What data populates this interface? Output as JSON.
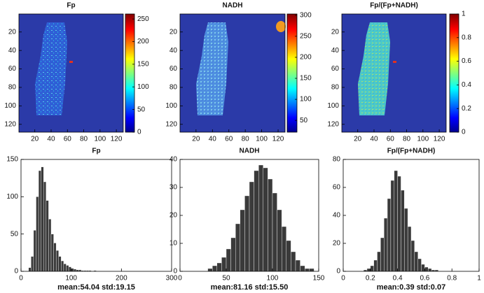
{
  "chart_data": [
    {
      "type": "heatmap",
      "title": "Fp",
      "xlim": [
        0.5,
        128.5
      ],
      "ylim": [
        0.5,
        128.5
      ],
      "y_reversed": true,
      "xticks": [
        20,
        40,
        60,
        80,
        100,
        120
      ],
      "yticks": [
        20,
        40,
        60,
        80,
        100,
        120
      ],
      "colorbar": {
        "lim": [
          0,
          261
        ],
        "ticks": [
          0,
          50,
          100,
          150,
          200,
          250
        ]
      }
    },
    {
      "type": "heatmap",
      "title": "NADH",
      "xlim": [
        0.5,
        128.5
      ],
      "ylim": [
        0.5,
        128.5
      ],
      "y_reversed": true,
      "xticks": [
        20,
        40,
        60,
        80,
        100,
        120
      ],
      "yticks": [
        20,
        40,
        60,
        80,
        100,
        120
      ],
      "colorbar": {
        "lim": [
          22,
          303
        ],
        "ticks": [
          50,
          100,
          150,
          200,
          250,
          300
        ]
      }
    },
    {
      "type": "heatmap",
      "title": "Fp/(Fp+NADH)",
      "xlim": [
        0.5,
        128.5
      ],
      "ylim": [
        0.5,
        128.5
      ],
      "y_reversed": true,
      "xticks": [
        20,
        40,
        60,
        80,
        100,
        120
      ],
      "yticks": [
        20,
        40,
        60,
        80,
        100,
        120
      ],
      "colorbar": {
        "lim": [
          0,
          1
        ],
        "ticks": [
          0,
          0.2,
          0.4,
          0.6,
          0.8,
          1
        ]
      }
    },
    {
      "type": "histogram",
      "title": "Fp",
      "xlabel": "mean:54.04 std:19.15",
      "color": "#3a3a3a",
      "bins": [
        15,
        20,
        25,
        30,
        35,
        40,
        45,
        50,
        55,
        60,
        65,
        70,
        75,
        80,
        85,
        90,
        95,
        100,
        105,
        110,
        115,
        120,
        125,
        130,
        135,
        140,
        145,
        150
      ],
      "counts": [
        5,
        20,
        55,
        100,
        135,
        140,
        120,
        95,
        70,
        50,
        38,
        28,
        20,
        14,
        10,
        8,
        6,
        4,
        3,
        2,
        2,
        1,
        1,
        1,
        1,
        0,
        1
      ],
      "xlim": [
        0,
        300
      ],
      "ylim": [
        0,
        150
      ],
      "xticks": [
        0,
        100,
        200,
        300
      ],
      "yticks": [
        0,
        50,
        100,
        150
      ]
    },
    {
      "type": "histogram",
      "title": "NADH",
      "xlabel": "mean:81.16 std:15.50",
      "color": "#3a3a3a",
      "bins": [
        30,
        35,
        40,
        45,
        50,
        55,
        60,
        65,
        70,
        75,
        80,
        85,
        90,
        95,
        100,
        105,
        110,
        115,
        120,
        125,
        130,
        135,
        140,
        145
      ],
      "counts": [
        1,
        2,
        3,
        5,
        8,
        12,
        17,
        22,
        27,
        32,
        36,
        38,
        37,
        33,
        28,
        22,
        16,
        11,
        7,
        4,
        2,
        1,
        1
      ],
      "xlim": [
        0,
        150
      ],
      "ylim": [
        0,
        40
      ],
      "xticks": [
        0,
        50,
        100,
        150
      ],
      "yticks": [
        0,
        10,
        20,
        30,
        40
      ]
    },
    {
      "type": "histogram",
      "title": "Fp/(Fp+NADH)",
      "xlabel": "mean:0.39 std:0.07",
      "color": "#3a3a3a",
      "bins": [
        0.15,
        0.175,
        0.2,
        0.225,
        0.25,
        0.275,
        0.3,
        0.325,
        0.35,
        0.375,
        0.4,
        0.425,
        0.45,
        0.475,
        0.5,
        0.525,
        0.55,
        0.575,
        0.6,
        0.625,
        0.65,
        0.675,
        0.7
      ],
      "counts": [
        1,
        2,
        4,
        8,
        14,
        24,
        38,
        52,
        65,
        72,
        68,
        58,
        45,
        32,
        22,
        14,
        9,
        5,
        3,
        2,
        1,
        1
      ],
      "xlim": [
        0,
        1
      ],
      "ylim": [
        0,
        80
      ],
      "xticks": [
        0,
        0.2,
        0.4,
        0.6,
        0.8,
        1
      ],
      "yticks": [
        0,
        20,
        40,
        60,
        80
      ]
    }
  ]
}
